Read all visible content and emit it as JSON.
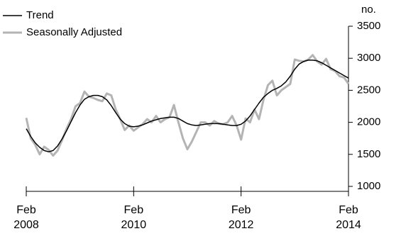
{
  "chart_data": {
    "type": "line",
    "unit_label": "no.",
    "x": [
      "2008-02",
      "2008-03",
      "2008-04",
      "2008-05",
      "2008-06",
      "2008-07",
      "2008-08",
      "2008-09",
      "2008-10",
      "2008-11",
      "2008-12",
      "2009-01",
      "2009-02",
      "2009-03",
      "2009-04",
      "2009-05",
      "2009-06",
      "2009-07",
      "2009-08",
      "2009-09",
      "2009-10",
      "2009-11",
      "2009-12",
      "2010-01",
      "2010-02",
      "2010-03",
      "2010-04",
      "2010-05",
      "2010-06",
      "2010-07",
      "2010-08",
      "2010-09",
      "2010-10",
      "2010-11",
      "2010-12",
      "2011-01",
      "2011-02",
      "2011-03",
      "2011-04",
      "2011-05",
      "2011-06",
      "2011-07",
      "2011-08",
      "2011-09",
      "2011-10",
      "2011-11",
      "2011-12",
      "2012-01",
      "2012-02",
      "2012-03",
      "2012-04",
      "2012-05",
      "2012-06",
      "2012-07",
      "2012-08",
      "2012-09",
      "2012-10",
      "2012-11",
      "2012-12",
      "2013-01",
      "2013-02",
      "2013-03",
      "2013-04",
      "2013-05",
      "2013-06",
      "2013-07",
      "2013-08",
      "2013-09",
      "2013-10",
      "2013-11",
      "2013-12",
      "2014-01",
      "2014-02"
    ],
    "series": [
      {
        "name": "Seasonally Adjusted",
        "color": "#b4b4b4",
        "values": [
          2070,
          1750,
          1650,
          1500,
          1620,
          1570,
          1480,
          1560,
          1720,
          1900,
          2050,
          2250,
          2300,
          2480,
          2400,
          2380,
          2350,
          2330,
          2450,
          2420,
          2200,
          2050,
          1880,
          1950,
          1870,
          1920,
          1970,
          2050,
          2000,
          2100,
          2000,
          2050,
          2080,
          2270,
          2000,
          1750,
          1580,
          1700,
          1850,
          2000,
          2000,
          1950,
          2020,
          1980,
          1970,
          2000,
          2100,
          1950,
          1730,
          2060,
          2000,
          2200,
          2050,
          2350,
          2580,
          2650,
          2420,
          2500,
          2550,
          2600,
          2980,
          2960,
          2950,
          2980,
          3050,
          2950,
          2900,
          2990,
          2830,
          2800,
          2720,
          2700,
          2600
        ]
      },
      {
        "name": "Trend",
        "color": "#000000",
        "values": [
          1900,
          1780,
          1680,
          1610,
          1560,
          1540,
          1560,
          1630,
          1740,
          1870,
          2010,
          2150,
          2270,
          2360,
          2400,
          2420,
          2420,
          2400,
          2350,
          2260,
          2150,
          2050,
          1980,
          1940,
          1930,
          1940,
          1960,
          1990,
          2020,
          2040,
          2060,
          2070,
          2080,
          2080,
          2060,
          2020,
          1980,
          1960,
          1950,
          1960,
          1970,
          1980,
          1980,
          1980,
          1970,
          1960,
          1950,
          1950,
          1970,
          2020,
          2100,
          2200,
          2300,
          2390,
          2450,
          2500,
          2530,
          2570,
          2630,
          2720,
          2830,
          2910,
          2950,
          2970,
          2970,
          2960,
          2930,
          2890,
          2850,
          2810,
          2770,
          2730,
          2690
        ]
      }
    ],
    "xticks": [
      {
        "value": "2008-02",
        "label": "Feb 2008"
      },
      {
        "value": "2010-02",
        "label": "Feb 2010"
      },
      {
        "value": "2012-02",
        "label": "Feb 2012"
      },
      {
        "value": "2014-02",
        "label": "Feb 2014"
      }
    ],
    "ylim": [
      1000,
      3500
    ],
    "yticks": [
      1000,
      1500,
      2000,
      2500,
      3000,
      3500
    ],
    "legend": "upper left"
  }
}
